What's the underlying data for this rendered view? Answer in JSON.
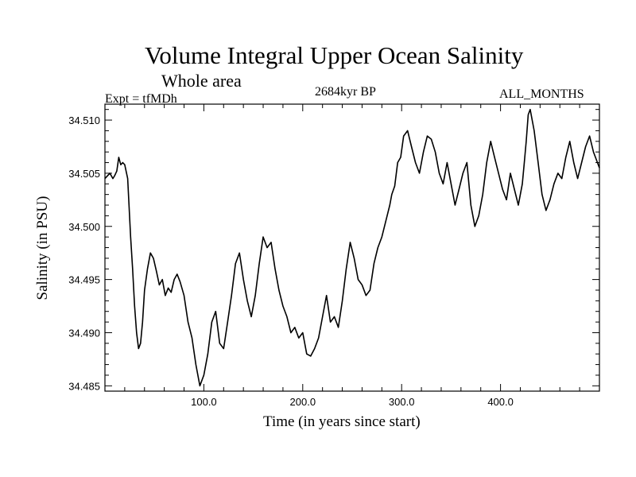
{
  "chart_data": {
    "type": "line",
    "title": "Volume Integral Upper Ocean Salinity",
    "subtitle": "Whole area",
    "experiment": "Expt = tfMDh",
    "period": "2684kyr BP",
    "months": "ALL_MONTHS",
    "xlabel": "Time (in years since start)",
    "ylabel": "Salinity (in PSU)",
    "xlim": [
      0,
      500
    ],
    "ylim": [
      34.4845,
      34.5115
    ],
    "xticks": [
      100,
      200,
      300,
      400
    ],
    "xtick_labels": [
      "100.0",
      "200.0",
      "300.0",
      "400.0"
    ],
    "yticks": [
      34.485,
      34.49,
      34.495,
      34.5,
      34.505,
      34.51
    ],
    "ytick_labels": [
      "34.485",
      "34.490",
      "34.495",
      "34.500",
      "34.505",
      "34.510"
    ],
    "grid": false,
    "series": [
      {
        "name": "Salinity",
        "color": "#000000",
        "x": [
          0,
          5,
          8,
          10,
          12,
          14,
          16,
          18,
          20,
          23,
          26,
          28,
          30,
          32,
          34,
          36,
          38,
          40,
          43,
          46,
          49,
          52,
          55,
          58,
          61,
          64,
          67,
          70,
          73,
          76,
          80,
          84,
          88,
          92,
          96,
          100,
          104,
          108,
          112,
          116,
          120,
          124,
          128,
          132,
          136,
          140,
          144,
          148,
          152,
          156,
          160,
          164,
          168,
          172,
          176,
          180,
          184,
          188,
          192,
          196,
          200,
          204,
          208,
          212,
          216,
          220,
          224,
          228,
          232,
          236,
          240,
          244,
          248,
          252,
          256,
          260,
          264,
          268,
          272,
          276,
          280,
          284,
          288,
          290,
          293,
          296,
          299,
          302,
          306,
          310,
          314,
          318,
          322,
          326,
          330,
          334,
          338,
          342,
          346,
          350,
          354,
          358,
          362,
          366,
          370,
          374,
          378,
          382,
          386,
          390,
          394,
          398,
          402,
          406,
          410,
          414,
          418,
          422,
          424,
          426,
          428,
          430,
          434,
          438,
          442,
          446,
          450,
          454,
          458,
          462,
          466,
          470,
          474,
          478,
          482,
          486,
          490,
          494,
          498,
          500
        ],
        "values": [
          34.5045,
          34.505,
          34.5045,
          34.5048,
          34.5052,
          34.5065,
          34.5058,
          34.506,
          34.5058,
          34.5045,
          34.499,
          34.496,
          34.4925,
          34.49,
          34.4885,
          34.489,
          34.491,
          34.494,
          34.496,
          34.4975,
          34.497,
          34.4958,
          34.4945,
          34.495,
          34.4935,
          34.4942,
          34.4938,
          34.495,
          34.4955,
          34.4948,
          34.4935,
          34.491,
          34.4895,
          34.487,
          34.485,
          34.486,
          34.488,
          34.491,
          34.492,
          34.489,
          34.4885,
          34.491,
          34.4935,
          34.4965,
          34.4975,
          34.495,
          34.493,
          34.4915,
          34.4935,
          34.4965,
          34.499,
          34.498,
          34.4985,
          34.496,
          34.494,
          34.4925,
          34.4915,
          34.49,
          34.4905,
          34.4895,
          34.49,
          34.488,
          34.4878,
          34.4885,
          34.4895,
          34.4915,
          34.4935,
          34.491,
          34.4915,
          34.4905,
          34.493,
          34.496,
          34.4985,
          34.497,
          34.495,
          34.4945,
          34.4935,
          34.494,
          34.4965,
          34.498,
          34.499,
          34.5005,
          34.502,
          34.503,
          34.5038,
          34.506,
          34.5065,
          34.5085,
          34.509,
          34.5075,
          34.506,
          34.505,
          34.507,
          34.5085,
          34.5082,
          34.507,
          34.505,
          34.504,
          34.506,
          34.504,
          34.502,
          34.5035,
          34.505,
          34.506,
          34.502,
          34.5,
          34.501,
          34.503,
          34.506,
          34.508,
          34.5065,
          34.505,
          34.5035,
          34.5025,
          34.505,
          34.5035,
          34.502,
          34.504,
          34.506,
          34.508,
          34.5105,
          34.511,
          34.509,
          34.506,
          34.503,
          34.5015,
          34.5025,
          34.504,
          34.505,
          34.5045,
          34.5065,
          34.508,
          34.506,
          34.5045,
          34.506,
          34.5075,
          34.5085,
          34.507,
          34.506,
          34.5055
        ]
      }
    ]
  }
}
